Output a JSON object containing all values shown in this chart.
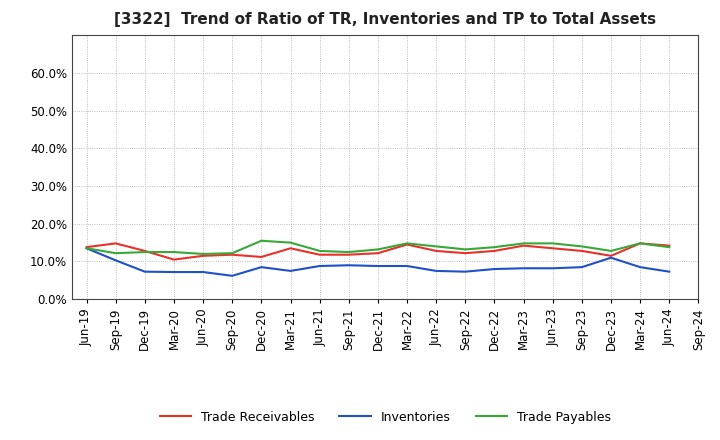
{
  "title": "[3322]  Trend of Ratio of TR, Inventories and TP to Total Assets",
  "x_labels": [
    "Jun-19",
    "Sep-19",
    "Dec-19",
    "Mar-20",
    "Jun-20",
    "Sep-20",
    "Dec-20",
    "Mar-21",
    "Jun-21",
    "Sep-21",
    "Dec-21",
    "Mar-22",
    "Jun-22",
    "Sep-22",
    "Dec-22",
    "Mar-23",
    "Jun-23",
    "Sep-23",
    "Dec-23",
    "Mar-24",
    "Jun-24",
    "Sep-24"
  ],
  "trade_receivables": [
    0.138,
    0.148,
    0.128,
    0.105,
    0.115,
    0.118,
    0.112,
    0.135,
    0.118,
    0.118,
    0.122,
    0.145,
    0.128,
    0.122,
    0.128,
    0.142,
    0.135,
    0.128,
    0.115,
    0.148,
    0.142,
    null
  ],
  "inventories": [
    0.135,
    0.103,
    0.073,
    0.072,
    0.072,
    0.062,
    0.085,
    0.075,
    0.088,
    0.09,
    0.088,
    0.088,
    0.075,
    0.073,
    0.08,
    0.082,
    0.082,
    0.085,
    0.11,
    0.085,
    0.073,
    null
  ],
  "trade_payables": [
    0.135,
    0.122,
    0.125,
    0.125,
    0.12,
    0.122,
    0.155,
    0.15,
    0.128,
    0.125,
    0.132,
    0.148,
    0.14,
    0.132,
    0.138,
    0.148,
    0.148,
    0.14,
    0.128,
    0.148,
    0.138,
    null
  ],
  "tr_color": "#e8312a",
  "inv_color": "#2050c8",
  "tp_color": "#38a838",
  "ylim": [
    0.0,
    0.7
  ],
  "yticks": [
    0.0,
    0.1,
    0.2,
    0.3,
    0.4,
    0.5,
    0.6
  ],
  "background_color": "#ffffff",
  "plot_bg_color": "#ffffff",
  "grid_color": "#aaaaaa",
  "legend_labels": [
    "Trade Receivables",
    "Inventories",
    "Trade Payables"
  ],
  "title_fontsize": 11,
  "tick_fontsize": 8.5,
  "legend_fontsize": 9
}
